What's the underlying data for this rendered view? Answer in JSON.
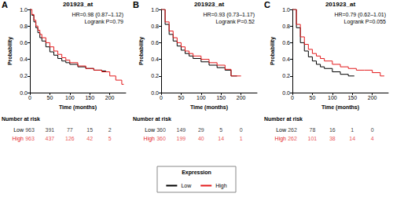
{
  "chart_data": [
    {
      "type": "line",
      "label": "A",
      "title": "201923_at",
      "annotations": [
        "HR=0.98 (0.87–1.12)",
        "Logrank P=0.79"
      ],
      "x_label": "Time (months)",
      "y_label": "Probability",
      "xlim": [
        0,
        240
      ],
      "ylim": [
        0,
        1
      ],
      "xticks": [
        0,
        50,
        100,
        150,
        200
      ],
      "yticks": [
        {
          "value": 0,
          "label": "0.0"
        },
        0.2,
        0.4,
        0.6,
        0.8,
        {
          "value": 1,
          "label": "1.0"
        }
      ],
      "legend": "bottom",
      "series": [
        {
          "name": "Low",
          "color": "#000000",
          "line_style": "step",
          "x": [
            0,
            5,
            10,
            15,
            20,
            25,
            30,
            40,
            50,
            60,
            70,
            80,
            90,
            100,
            120,
            140,
            160,
            180,
            190
          ],
          "values": [
            1,
            0.93,
            0.85,
            0.78,
            0.72,
            0.66,
            0.62,
            0.55,
            0.49,
            0.45,
            0.41,
            0.38,
            0.36,
            0.34,
            0.31,
            0.29,
            0.27,
            0.26,
            0.25
          ]
        },
        {
          "name": "High",
          "color": "#e31a1c",
          "line_style": "step",
          "x": [
            0,
            5,
            10,
            15,
            20,
            25,
            30,
            40,
            50,
            60,
            70,
            80,
            90,
            100,
            120,
            140,
            160,
            180,
            200,
            215,
            230,
            235
          ],
          "values": [
            1,
            0.94,
            0.87,
            0.8,
            0.75,
            0.7,
            0.66,
            0.6,
            0.55,
            0.5,
            0.46,
            0.42,
            0.39,
            0.36,
            0.32,
            0.29,
            0.27,
            0.25,
            0.2,
            0.15,
            0.1,
            0.1
          ]
        }
      ],
      "risk_table": {
        "title": "Number at risk",
        "x": [
          0,
          50,
          100,
          150,
          200
        ],
        "rows": [
          {
            "name": "Low",
            "color": "#000000",
            "values": [
              963,
              391,
              77,
              15,
              2
            ]
          },
          {
            "name": "High",
            "color": "#e31a1c",
            "values": [
              963,
              437,
              126,
              42,
              5
            ]
          }
        ]
      }
    },
    {
      "type": "line",
      "label": "B",
      "title": "201923_at",
      "annotations": [
        "HR=0.93 (0.73–1.17)",
        "Logrank P=0.52"
      ],
      "x_label": "Time (months)",
      "y_label": "Probability",
      "xlim": [
        0,
        240
      ],
      "ylim": [
        0,
        1
      ],
      "xticks": [
        0,
        50,
        100,
        150,
        200
      ],
      "yticks": [
        {
          "value": 0,
          "label": "0.0"
        },
        0.2,
        0.4,
        0.6,
        0.8,
        {
          "value": 1,
          "label": "1.0"
        }
      ],
      "legend": "bottom",
      "series": [
        {
          "name": "Low",
          "color": "#000000",
          "line_style": "step",
          "x": [
            0,
            10,
            20,
            30,
            40,
            50,
            60,
            70,
            80,
            100,
            120,
            140,
            160,
            175,
            190
          ],
          "values": [
            1,
            0.82,
            0.7,
            0.62,
            0.56,
            0.51,
            0.47,
            0.44,
            0.41,
            0.37,
            0.33,
            0.3,
            0.27,
            0.2,
            0.2
          ]
        },
        {
          "name": "High",
          "color": "#e31a1c",
          "line_style": "step",
          "x": [
            0,
            10,
            20,
            30,
            40,
            50,
            60,
            70,
            80,
            100,
            120,
            140,
            160,
            175,
            200
          ],
          "values": [
            1,
            0.85,
            0.74,
            0.66,
            0.6,
            0.55,
            0.5,
            0.47,
            0.44,
            0.4,
            0.36,
            0.33,
            0.28,
            0.2,
            0.2
          ]
        }
      ],
      "risk_table": {
        "title": "Number at risk",
        "x": [
          0,
          50,
          100,
          150,
          200
        ],
        "rows": [
          {
            "name": "Low",
            "color": "#000000",
            "values": [
              360,
              149,
              29,
              5,
              0
            ]
          },
          {
            "name": "High",
            "color": "#e31a1c",
            "values": [
              360,
              199,
              40,
              14,
              1
            ]
          }
        ]
      }
    },
    {
      "type": "line",
      "label": "C",
      "title": "201923_at",
      "annotations": [
        "HR=0.79 (0.62–1.01)",
        "Logrank P=0.055"
      ],
      "x_label": "Time (months)",
      "y_label": "Probability",
      "xlim": [
        0,
        240
      ],
      "ylim": [
        0,
        1
      ],
      "xticks": [
        0,
        50,
        100,
        150,
        200
      ],
      "yticks": [
        {
          "value": 0,
          "label": "0.0"
        },
        0.2,
        0.4,
        0.6,
        0.8,
        {
          "value": 1,
          "label": "1.0"
        }
      ],
      "legend": "bottom",
      "series": [
        {
          "name": "Low",
          "color": "#000000",
          "line_style": "step",
          "x": [
            0,
            10,
            20,
            30,
            40,
            50,
            60,
            70,
            80,
            100,
            120,
            140,
            155
          ],
          "values": [
            1,
            0.78,
            0.6,
            0.5,
            0.43,
            0.38,
            0.34,
            0.31,
            0.29,
            0.25,
            0.22,
            0.2,
            0.2
          ]
        },
        {
          "name": "High",
          "color": "#e31a1c",
          "line_style": "step",
          "x": [
            0,
            10,
            20,
            30,
            40,
            50,
            60,
            70,
            80,
            100,
            120,
            140,
            160,
            180,
            200,
            220,
            230
          ],
          "values": [
            1,
            0.82,
            0.67,
            0.58,
            0.52,
            0.47,
            0.44,
            0.41,
            0.38,
            0.34,
            0.31,
            0.29,
            0.27,
            0.27,
            0.24,
            0.2,
            0.2
          ]
        }
      ],
      "risk_table": {
        "title": "Number at risk",
        "x": [
          0,
          50,
          100,
          150,
          200
        ],
        "rows": [
          {
            "name": "Low",
            "color": "#000000",
            "values": [
              262,
              78,
              16,
              1,
              0
            ]
          },
          {
            "name": "High",
            "color": "#e31a1c",
            "values": [
              262,
              101,
              38,
              14,
              4
            ]
          }
        ]
      }
    }
  ],
  "legend_title": "Expression"
}
